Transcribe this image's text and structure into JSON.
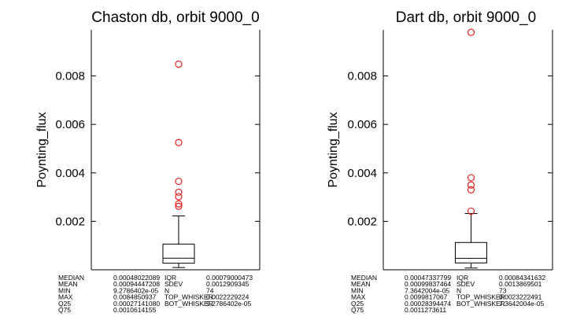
{
  "chart_data": [
    {
      "type": "boxplot",
      "title": "Chaston db, orbit 9000_0",
      "ylabel": "Poynting_flux",
      "ylim": [
        0,
        0.0099
      ],
      "yticks": [
        0.002,
        0.004,
        0.006,
        0.008
      ],
      "ytick_labels": [
        "0.002",
        "0.004",
        "0.006",
        "0.008"
      ],
      "box": {
        "q25": 0.0002714108,
        "median": 0.00048022089,
        "q75": 0.0010614155,
        "bot_whisker": 9.2786402e-05,
        "top_whisker": 0.0022229224
      },
      "outliers": [
        0.0084850937,
        0.00525,
        0.00365,
        0.0032,
        0.00302,
        0.00272,
        0.00262
      ],
      "colors": {
        "box": "#000000",
        "outlier": "#e8201c"
      },
      "stats": [
        [
          "MEDIAN",
          "0.00048022089",
          "IQR",
          "0.00079000473"
        ],
        [
          "MEAN",
          "0.00094447208",
          "SDEV",
          "0.0012909345"
        ],
        [
          "MIN",
          "9.2786402e-05",
          "N",
          "74"
        ],
        [
          "MAX",
          "0.0084850937",
          "TOP_WHISKER",
          "0.0022229224"
        ],
        [
          "Q25",
          "0.00027141080",
          "BOT_WHISKER",
          "9.2786402e-05"
        ],
        [
          "Q75",
          "0.0010614155",
          "",
          ""
        ]
      ]
    },
    {
      "type": "boxplot",
      "title": "Dart db, orbit 9000_0",
      "ylabel": "Poynting_flux",
      "ylim": [
        0,
        0.0099
      ],
      "yticks": [
        0.002,
        0.004,
        0.006,
        0.008
      ],
      "ytick_labels": [
        "0.002",
        "0.004",
        "0.006",
        "0.008"
      ],
      "box": {
        "q25": 0.00028394474,
        "median": 0.00047337799,
        "q75": 0.0011273611,
        "bot_whisker": 7.3642004e-05,
        "top_whisker": 0.0023222491
      },
      "outliers": [
        0.0098,
        0.0038,
        0.0035,
        0.0033,
        0.00242
      ],
      "colors": {
        "box": "#000000",
        "outlier": "#e8201c"
      },
      "stats": [
        [
          "MEDIAN",
          "0.00047337799",
          "IQR",
          "0.00084341632"
        ],
        [
          "MEAN",
          "0.00099837464",
          "SDEV",
          "0.0013869501"
        ],
        [
          "MIN",
          "7.3642004e-05",
          "N",
          "73"
        ],
        [
          "MAX",
          "0.0099817067",
          "TOP_WHISKER",
          "0.0023222491"
        ],
        [
          "Q25",
          "0.00028394474",
          "BOT_WHISKER",
          "7.3642004e-05"
        ],
        [
          "Q75",
          "0.0011273611",
          "",
          ""
        ]
      ]
    }
  ]
}
